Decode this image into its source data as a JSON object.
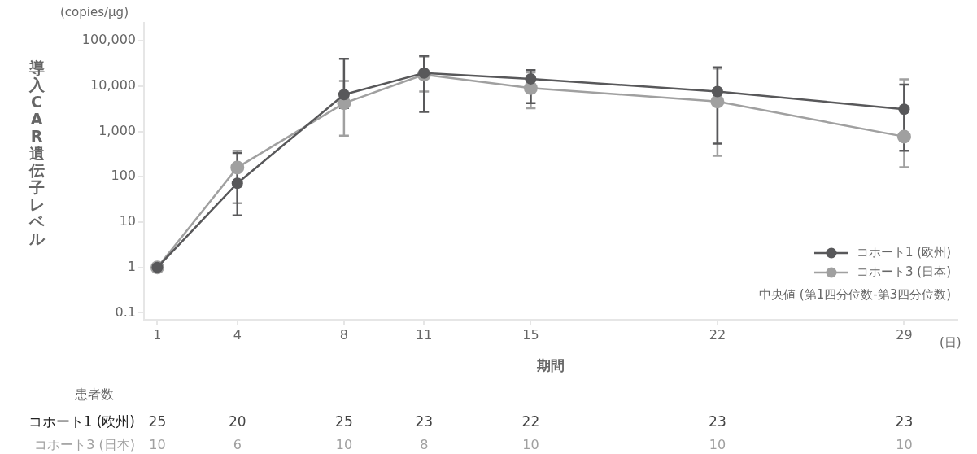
{
  "chart_data": {
    "type": "line",
    "xlabel": "期間",
    "ylabel": "導入CAR遺伝子レベル",
    "x": [
      1,
      4,
      8,
      11,
      15,
      22,
      29
    ],
    "xlim": [
      0.5,
      31
    ],
    "xticks": [
      1,
      4,
      8,
      11,
      15,
      22,
      29
    ],
    "ylim": [
      0.07,
      250000
    ],
    "yticks": [
      {
        "value": 0.1,
        "label": "0.1"
      },
      {
        "value": 1,
        "label": "1"
      },
      {
        "value": 10,
        "label": "10"
      },
      {
        "value": 100,
        "label": "100"
      },
      {
        "value": 1000,
        "label": "1,000"
      },
      {
        "value": 10000,
        "label": "10,000"
      },
      {
        "value": 100000,
        "label": "100,000"
      }
    ],
    "log": "y",
    "grid": false,
    "legend": "bottom right",
    "marker": "circle",
    "line_style": "solid",
    "series": [
      {
        "name": "コホート1 (欧州)",
        "color": "#58585a",
        "values": [
          1,
          72,
          6500,
          19500,
          14500,
          7600,
          3100
        ],
        "errors": [
          null,
          [
            14,
            336
          ],
          [
            3300,
            40000
          ],
          [
            2700,
            47000
          ],
          [
            4200,
            22500
          ],
          [
            540,
            26000
          ],
          [
            375,
            10800
          ]
        ]
      },
      {
        "name": "コホート3 (日本)",
        "color": "#a0a0a0",
        "values": [
          1,
          160,
          4200,
          18000,
          9100,
          4600,
          770
        ],
        "errors": [
          null,
          [
            26,
            375
          ],
          [
            810,
            13000
          ],
          [
            7600,
            45000
          ],
          [
            3250,
            20000
          ],
          [
            290,
            24500
          ],
          [
            163,
            14200
          ]
        ]
      }
    ],
    "annotations": [
      "(copies/μg)",
      "(日)",
      "中央値 (第1四分位数-第3四分位数)",
      "患者数",
      "コホート1 (欧州)",
      "25",
      "20",
      "25",
      "23",
      "22",
      "23",
      "23",
      "コホート3 (日本)",
      "10",
      "6",
      "10",
      "8",
      "10",
      "10",
      "10"
    ]
  }
}
